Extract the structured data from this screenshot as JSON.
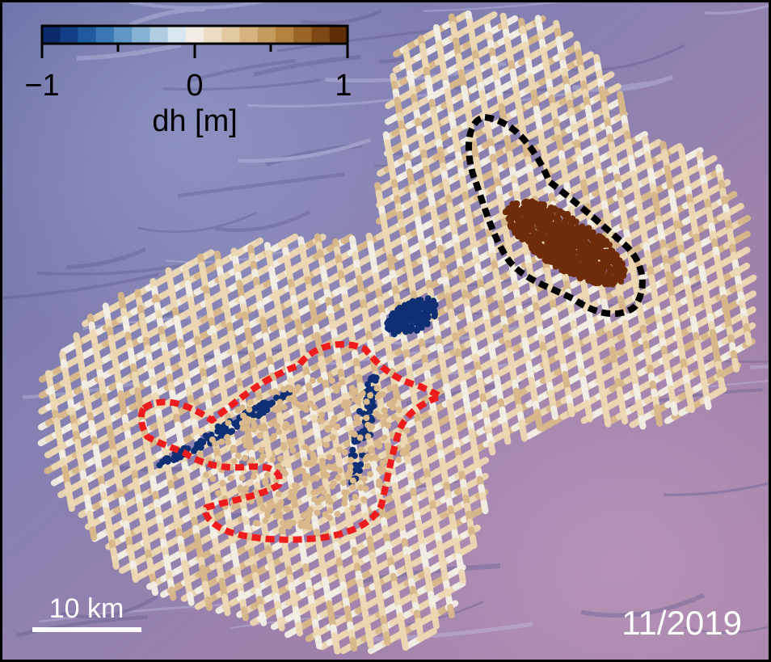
{
  "colorbar": {
    "label": "dh [m]",
    "ticks": [
      "−1",
      "0",
      "1"
    ],
    "range": [
      -1,
      1
    ],
    "colors": [
      "#0a2a6a",
      "#143e85",
      "#1f5a9e",
      "#3a78b4",
      "#5e97c6",
      "#86b2d4",
      "#b1cde2",
      "#d8e6ef",
      "#f1ece4",
      "#ecdcc3",
      "#e2c8a0",
      "#d5b27e",
      "#c59a5d",
      "#b3823f",
      "#9a6526",
      "#7e4814",
      "#5e2d06"
    ]
  },
  "scalebar": {
    "label": "10 km"
  },
  "date": "11/2019",
  "colors": {
    "track_light": "#ecd8b3",
    "track_tan": "#d8b88a",
    "track_bright": "#f3efe5",
    "uplift": "#6e2c0a",
    "subsidence": "#0f2f74",
    "outline_red": "#ee1c1c",
    "outline_black": "#000000"
  }
}
